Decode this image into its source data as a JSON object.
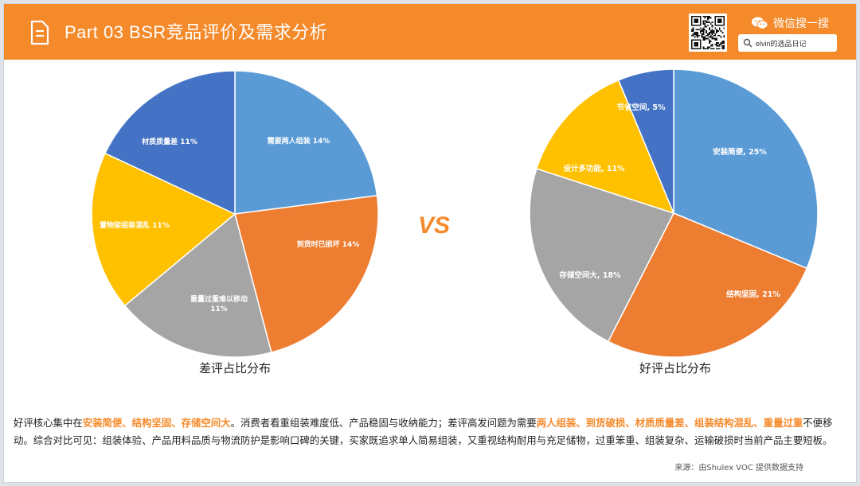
{
  "header": {
    "title": "Part 03  BSR竞品评价及需求分析",
    "wechat_label": "微信搜一搜",
    "search_text": "elvin的选品日记"
  },
  "colors": {
    "accent": "#f58a2b",
    "blue": "#5b9bd5",
    "orange": "#ed7d31",
    "gray": "#a5a5a5",
    "yellow": "#ffc000",
    "darkblue": "#4472c4"
  },
  "chart_data": [
    {
      "type": "pie",
      "title": "差评占比分布",
      "slices": [
        {
          "label": "需要两人组装",
          "value": 14,
          "color": "#5b9bd5"
        },
        {
          "label": "到货时已损坏",
          "value": 14,
          "color": "#ed7d31"
        },
        {
          "label": "重量过重难以移动",
          "value": 11,
          "color": "#a5a5a5"
        },
        {
          "label": "置物架组装混乱",
          "value": 11,
          "color": "#ffc000"
        },
        {
          "label": "材质质量差",
          "value": 11,
          "color": "#4472c4"
        }
      ]
    },
    {
      "type": "pie",
      "title": "好评占比分布",
      "slices": [
        {
          "label": "安装简便",
          "value": 25,
          "color": "#5b9bd5"
        },
        {
          "label": "结构坚固",
          "value": 21,
          "color": "#ed7d31"
        },
        {
          "label": "存储空间大",
          "value": 18,
          "color": "#a5a5a5"
        },
        {
          "label": "设计多功能",
          "value": 11,
          "color": "#ffc000"
        },
        {
          "label": "节省空间",
          "value": 5,
          "color": "#4472c4"
        }
      ]
    }
  ],
  "vs_label": "VS",
  "summary": {
    "p1": "好评核心集中在",
    "h1": "安装简便、结构坚固、存储空间大",
    "p2": "。消费者看重组装难度低、产品稳固与收纳能力；差评高发问题为需要",
    "h2": "两人组装、到货破损、材质质量差、组装结构混乱、重量过重",
    "p3": "不便移动。综合对比可见：组装体验、产品用料品质与物流防护是影响口碑的关键，买家既追求单人简易组装，又重视结构耐用与充足储物，过重笨重、组装复杂、运输破损时当前产品主要短板。"
  },
  "source": "来源：由Shulex VOC 提供数据支持"
}
